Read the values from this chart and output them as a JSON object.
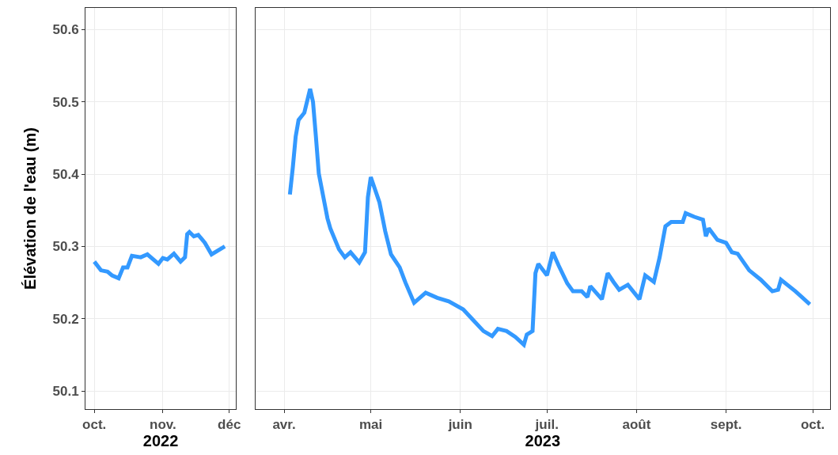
{
  "chart_data": [
    {
      "type": "line",
      "xlabel": "2022",
      "ylabel": "Élévation de l'eau (m)",
      "grid": true,
      "line_style": "solid",
      "marker": "none",
      "xlim": [
        "2022-09-27",
        "2022-12-04"
      ],
      "xticks": [
        {
          "value": "2022-10-01",
          "label": "oct."
        },
        {
          "value": "2022-11-01",
          "label": "nov."
        },
        {
          "value": "2022-12-01",
          "label": "déc"
        }
      ],
      "ylim": [
        50.075,
        50.63
      ],
      "yticks": [
        50.1,
        50.2,
        50.3,
        50.4,
        50.5,
        50.6
      ],
      "series": [
        {
          "color": "#3399ff",
          "x": [
            "2022-10-01",
            "2022-10-04",
            "2022-10-07",
            "2022-10-09",
            "2022-10-12",
            "2022-10-14",
            "2022-10-16",
            "2022-10-18",
            "2022-10-22",
            "2022-10-25",
            "2022-10-30",
            "2022-11-01",
            "2022-11-03",
            "2022-11-06",
            "2022-11-09",
            "2022-11-11",
            "2022-11-12",
            "2022-11-13",
            "2022-11-15",
            "2022-11-17",
            "2022-11-20",
            "2022-11-23",
            "2022-11-29"
          ],
          "values": [
            50.279,
            50.267,
            50.265,
            50.26,
            50.256,
            50.271,
            50.271,
            50.287,
            50.285,
            50.289,
            50.276,
            50.284,
            50.282,
            50.29,
            50.279,
            50.285,
            50.317,
            50.32,
            50.314,
            50.316,
            50.305,
            50.289,
            50.3
          ]
        }
      ]
    },
    {
      "type": "line",
      "xlabel": "2023",
      "grid": true,
      "line_style": "solid",
      "marker": "none",
      "tick_labels": "x",
      "xlim": [
        "2023-03-22",
        "2023-10-07"
      ],
      "xticks": [
        {
          "value": "2023-04-01",
          "label": "avr."
        },
        {
          "value": "2023-05-01",
          "label": "mai"
        },
        {
          "value": "2023-06-01",
          "label": "juin"
        },
        {
          "value": "2023-07-01",
          "label": "juil."
        },
        {
          "value": "2023-08-01",
          "label": "août"
        },
        {
          "value": "2023-09-01",
          "label": "sept."
        },
        {
          "value": "2023-10-01",
          "label": "oct."
        }
      ],
      "ylim": [
        50.075,
        50.63
      ],
      "yticks": [
        50.1,
        50.2,
        50.3,
        50.4,
        50.5,
        50.6
      ],
      "series": [
        {
          "color": "#3399ff",
          "x": [
            "2023-04-03",
            "2023-04-04",
            "2023-04-05",
            "2023-04-06",
            "2023-04-08",
            "2023-04-10",
            "2023-04-11",
            "2023-04-12",
            "2023-04-13",
            "2023-04-16",
            "2023-04-17",
            "2023-04-20",
            "2023-04-22",
            "2023-04-24",
            "2023-04-27",
            "2023-04-29",
            "2023-04-30",
            "2023-05-01",
            "2023-05-04",
            "2023-05-06",
            "2023-05-08",
            "2023-05-11",
            "2023-05-13",
            "2023-05-16",
            "2023-05-20",
            "2023-05-24",
            "2023-05-28",
            "2023-06-02",
            "2023-06-05",
            "2023-06-09",
            "2023-06-12",
            "2023-06-14",
            "2023-06-17",
            "2023-06-20",
            "2023-06-23",
            "2023-06-24",
            "2023-06-26",
            "2023-06-27",
            "2023-06-28",
            "2023-07-01",
            "2023-07-03",
            "2023-07-05",
            "2023-07-08",
            "2023-07-10",
            "2023-07-13",
            "2023-07-15",
            "2023-07-16",
            "2023-07-20",
            "2023-07-22",
            "2023-07-24",
            "2023-07-26",
            "2023-07-29",
            "2023-08-02",
            "2023-08-04",
            "2023-08-07",
            "2023-08-09",
            "2023-08-11",
            "2023-08-13",
            "2023-08-17",
            "2023-08-18",
            "2023-08-21",
            "2023-08-24",
            "2023-08-25",
            "2023-08-26",
            "2023-08-29",
            "2023-09-01",
            "2023-09-03",
            "2023-09-05",
            "2023-09-09",
            "2023-09-13",
            "2023-09-17",
            "2023-09-19",
            "2023-09-20",
            "2023-09-25",
            "2023-09-30"
          ],
          "values": [
            50.372,
            50.409,
            50.452,
            50.475,
            50.485,
            50.518,
            50.5,
            50.452,
            50.401,
            50.339,
            50.325,
            50.296,
            50.285,
            50.292,
            50.278,
            50.292,
            50.368,
            50.396,
            50.361,
            50.321,
            50.289,
            50.271,
            50.25,
            50.222,
            50.236,
            50.229,
            50.224,
            50.213,
            50.2,
            50.183,
            50.176,
            50.186,
            50.183,
            50.175,
            50.164,
            50.178,
            50.183,
            50.263,
            50.276,
            50.26,
            50.292,
            50.274,
            50.249,
            50.238,
            50.238,
            50.23,
            50.245,
            50.227,
            50.263,
            50.251,
            50.24,
            50.247,
            50.227,
            50.26,
            50.251,
            50.285,
            50.328,
            50.334,
            50.334,
            50.346,
            50.341,
            50.337,
            50.314,
            50.325,
            50.309,
            50.305,
            50.292,
            50.29,
            50.267,
            50.254,
            50.238,
            50.24,
            50.254,
            50.238,
            50.22
          ]
        }
      ]
    }
  ]
}
